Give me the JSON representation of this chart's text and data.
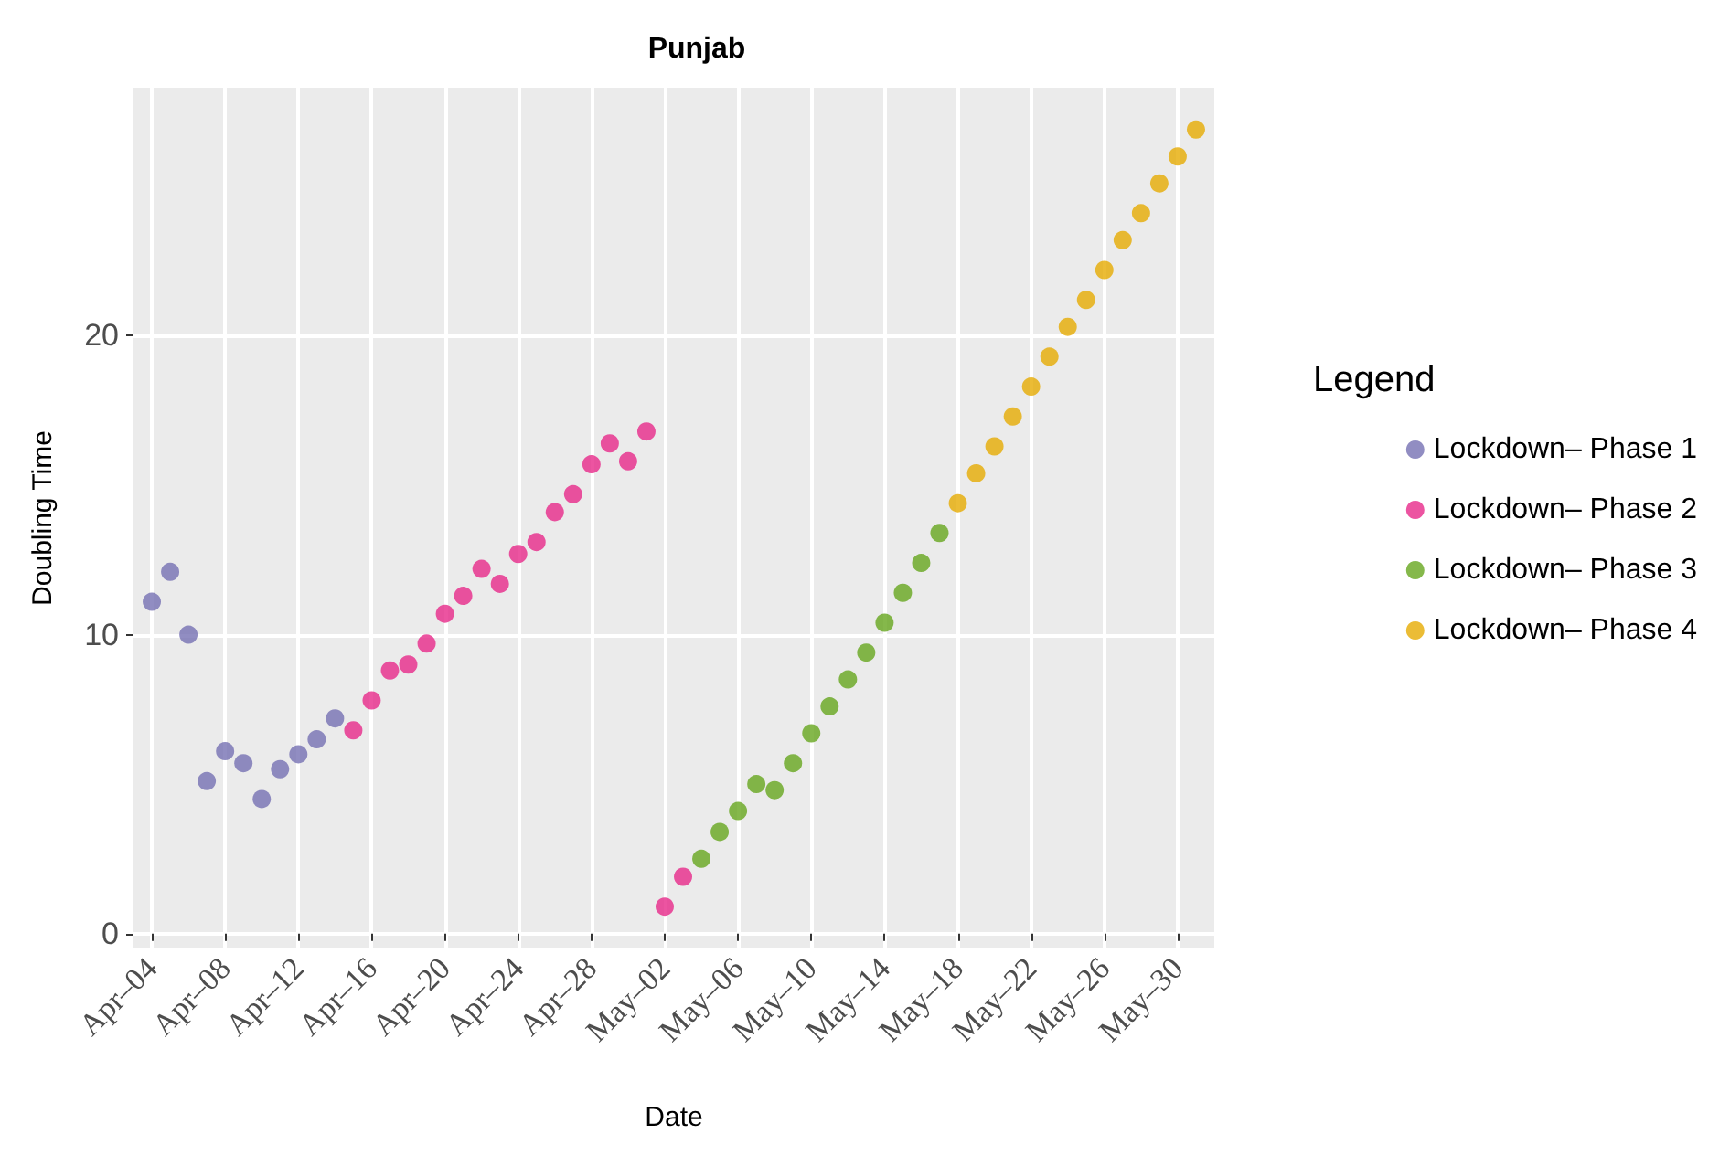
{
  "chart_data": {
    "type": "scatter",
    "title": "Punjab",
    "xlabel": "Date",
    "ylabel": "Doubling Time",
    "legend_title": "Legend",
    "legend": "right",
    "grid": true,
    "marker": "circle",
    "xlim": [
      "--04-03",
      "--06-01"
    ],
    "xticks": [
      {
        "value": "--04-04",
        "label": "Apr–04"
      },
      {
        "value": "--04-08",
        "label": "Apr–08"
      },
      {
        "value": "--04-12",
        "label": "Apr–12"
      },
      {
        "value": "--04-16",
        "label": "Apr–16"
      },
      {
        "value": "--04-20",
        "label": "Apr–20"
      },
      {
        "value": "--04-24",
        "label": "Apr–24"
      },
      {
        "value": "--04-28",
        "label": "Apr–28"
      },
      {
        "value": "--05-02",
        "label": "May–02"
      },
      {
        "value": "--05-06",
        "label": "May–06"
      },
      {
        "value": "--05-10",
        "label": "May–10"
      },
      {
        "value": "--05-14",
        "label": "May–14"
      },
      {
        "value": "--05-18",
        "label": "May–18"
      },
      {
        "value": "--05-22",
        "label": "May–22"
      },
      {
        "value": "--05-26",
        "label": "May–26"
      },
      {
        "value": "--05-30",
        "label": "May–30"
      }
    ],
    "ylim": [
      -0.5,
      28.3
    ],
    "yticks": [
      0,
      10,
      20
    ],
    "series": [
      {
        "name": "Lockdown– Phase 1",
        "color": "#7570b3",
        "x": [
          "--04-04",
          "--04-05",
          "--04-06",
          "--04-07",
          "--04-08",
          "--04-09",
          "--04-10",
          "--04-11",
          "--04-12",
          "--04-13",
          "--04-14"
        ],
        "values": [
          11.1,
          12.1,
          10.0,
          5.1,
          6.1,
          5.7,
          4.5,
          5.5,
          6.0,
          6.5,
          7.2
        ]
      },
      {
        "name": "Lockdown– Phase 2",
        "color": "#e7298a",
        "x": [
          "--04-15",
          "--04-16",
          "--04-17",
          "--04-18",
          "--04-19",
          "--04-20",
          "--04-21",
          "--04-22",
          "--04-23",
          "--04-24",
          "--04-25",
          "--04-26",
          "--04-27",
          "--04-28",
          "--04-29",
          "--04-30",
          "--05-01",
          "--05-02",
          "--05-03"
        ],
        "values": [
          6.8,
          7.8,
          8.8,
          9.0,
          9.7,
          10.7,
          11.3,
          12.2,
          11.7,
          12.7,
          13.1,
          14.1,
          14.7,
          15.7,
          16.4,
          15.8,
          16.8,
          0.9,
          1.9
        ]
      },
      {
        "name": "Lockdown– Phase 3",
        "color": "#66a61e",
        "x": [
          "--05-04",
          "--05-05",
          "--05-06",
          "--05-07",
          "--05-08",
          "--05-09",
          "--05-10",
          "--05-11",
          "--05-12",
          "--05-13",
          "--05-14",
          "--05-15",
          "--05-16",
          "--05-17"
        ],
        "values": [
          2.5,
          3.4,
          4.1,
          5.0,
          4.8,
          5.7,
          6.7,
          7.6,
          8.5,
          9.4,
          10.4,
          11.4,
          12.4,
          13.4
        ]
      },
      {
        "name": "Lockdown– Phase 4",
        "color": "#e6ab02",
        "x": [
          "--05-18",
          "--05-19",
          "--05-20",
          "--05-21",
          "--05-22",
          "--05-23",
          "--05-24",
          "--05-25",
          "--05-26",
          "--05-27",
          "--05-28",
          "--05-29",
          "--05-30",
          "--05-31"
        ],
        "values": [
          14.4,
          15.4,
          16.3,
          17.3,
          18.3,
          19.3,
          20.3,
          21.2,
          22.2,
          23.2,
          24.1,
          25.1,
          26.0,
          26.9
        ]
      }
    ]
  }
}
